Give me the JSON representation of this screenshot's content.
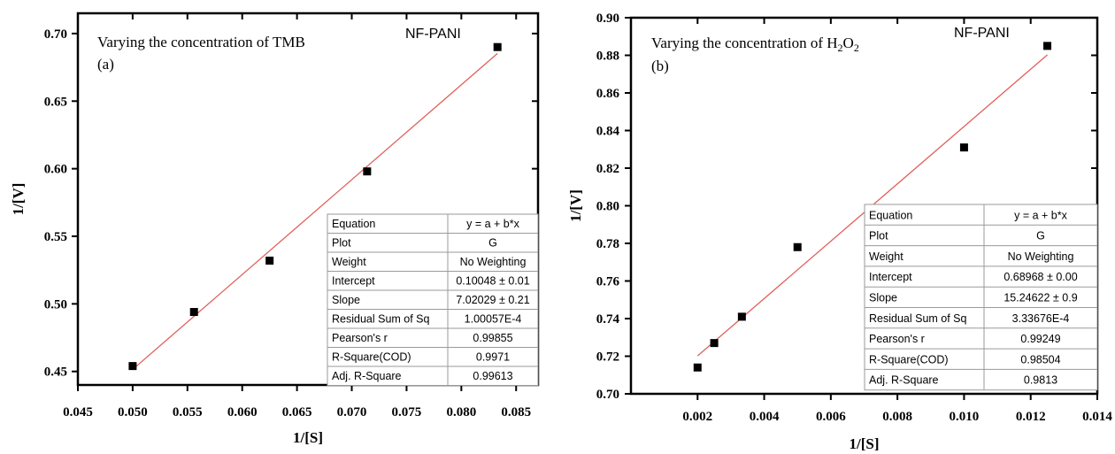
{
  "chart_data": [
    {
      "type": "scatter",
      "panel_label": "(a)",
      "annotation": "Varying the concentration of TMB",
      "material_label": "NF-PANI",
      "xlabel": "1/[S]",
      "ylabel": "1/[V]",
      "xlim": [
        0.045,
        0.087
      ],
      "ylim": [
        0.44,
        0.715
      ],
      "xticks": [
        "0.045",
        "0.050",
        "0.055",
        "0.060",
        "0.065",
        "0.070",
        "0.075",
        "0.080",
        "0.085"
      ],
      "xtick_values": [
        0.045,
        0.05,
        0.055,
        0.06,
        0.065,
        0.07,
        0.075,
        0.08,
        0.085
      ],
      "yticks": [
        "0.45",
        "0.50",
        "0.55",
        "0.60",
        "0.65",
        "0.70"
      ],
      "ytick_values": [
        0.45,
        0.5,
        0.55,
        0.6,
        0.65,
        0.7
      ],
      "points": [
        {
          "x": 0.05,
          "y": 0.454
        },
        {
          "x": 0.0556,
          "y": 0.494
        },
        {
          "x": 0.0625,
          "y": 0.532
        },
        {
          "x": 0.0714,
          "y": 0.598
        },
        {
          "x": 0.0833,
          "y": 0.69
        }
      ],
      "fit": {
        "intercept": 0.10048,
        "slope": 7.02029,
        "x_range": [
          0.05,
          0.0833
        ],
        "color": "#e0605a"
      },
      "marker_color": "#000000",
      "fit_table": [
        [
          "Equation",
          "y = a + b*x"
        ],
        [
          "Plot",
          "G"
        ],
        [
          "Weight",
          "No Weighting"
        ],
        [
          "Intercept",
          "0.10048 ± 0.01"
        ],
        [
          "Slope",
          "7.02029 ± 0.21"
        ],
        [
          "Residual Sum of Sq",
          "1.00057E-4"
        ],
        [
          "Pearson's r",
          "0.99855"
        ],
        [
          "R-Square(COD)",
          "0.9971"
        ],
        [
          "Adj. R-Square",
          "0.99613"
        ]
      ]
    },
    {
      "type": "scatter",
      "panel_label": "(b)",
      "annotation": "Varying the concentration of H",
      "annotation_sub1": "2",
      "annotation_mid": "O",
      "annotation_sub2": "2",
      "material_label": "NF-PANI",
      "xlabel": "1/[S]",
      "ylabel": "1/[V]",
      "xlim": [
        0.0,
        0.014
      ],
      "ylim": [
        0.7,
        0.9
      ],
      "xticks": [
        "0.002",
        "0.004",
        "0.006",
        "0.008",
        "0.010",
        "0.012",
        "0.014"
      ],
      "xtick_values": [
        0.002,
        0.004,
        0.006,
        0.008,
        0.01,
        0.012,
        0.014
      ],
      "yticks": [
        "0.70",
        "0.72",
        "0.74",
        "0.76",
        "0.78",
        "0.80",
        "0.82",
        "0.84",
        "0.86",
        "0.88",
        "0.90"
      ],
      "ytick_values": [
        0.7,
        0.72,
        0.74,
        0.76,
        0.78,
        0.8,
        0.82,
        0.84,
        0.86,
        0.88,
        0.9
      ],
      "points": [
        {
          "x": 0.002,
          "y": 0.714
        },
        {
          "x": 0.0025,
          "y": 0.727
        },
        {
          "x": 0.00333,
          "y": 0.741
        },
        {
          "x": 0.005,
          "y": 0.778
        },
        {
          "x": 0.01,
          "y": 0.831
        },
        {
          "x": 0.0125,
          "y": 0.885
        }
      ],
      "fit": {
        "intercept": 0.68968,
        "slope": 15.24622,
        "x_range": [
          0.002,
          0.0125
        ],
        "color": "#e0605a"
      },
      "marker_color": "#000000",
      "fit_table": [
        [
          "Equation",
          "y = a + b*x"
        ],
        [
          "Plot",
          "G"
        ],
        [
          "Weight",
          "No Weighting"
        ],
        [
          "Intercept",
          "0.68968 ± 0.00"
        ],
        [
          "Slope",
          "15.24622 ± 0.9"
        ],
        [
          "Residual Sum of Sq",
          "3.33676E-4"
        ],
        [
          "Pearson's r",
          "0.99249"
        ],
        [
          "R-Square(COD)",
          "0.98504"
        ],
        [
          "Adj. R-Square",
          "0.9813"
        ]
      ]
    }
  ]
}
